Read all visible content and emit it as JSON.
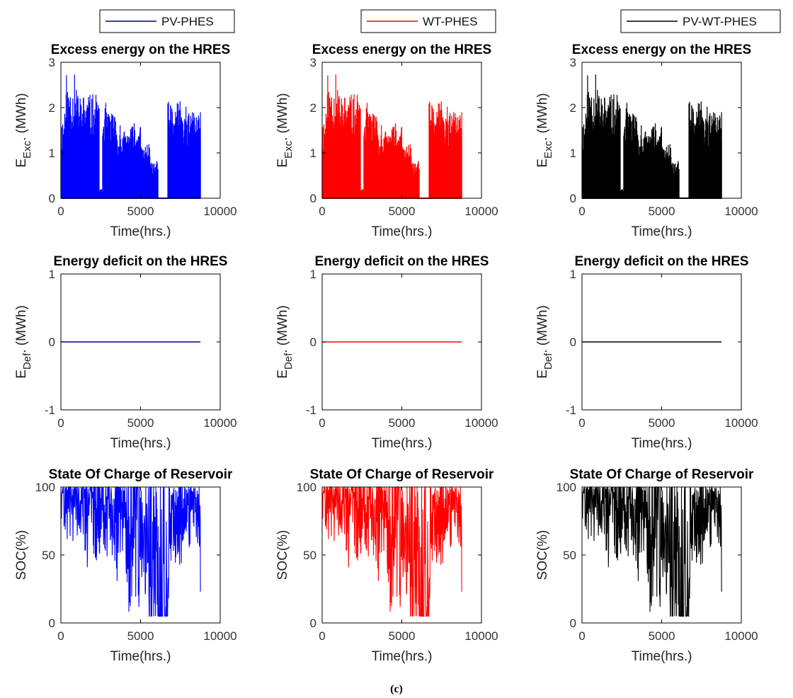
{
  "caption": "(c)",
  "chart_data": [
    {
      "type": "line",
      "title": "Excess energy on the HRES",
      "series_name": "PV-PHES",
      "color": "#0000ff",
      "legend_color": "#000080",
      "ylabel_main": "E",
      "ylabel_sub": "Exc",
      "ylabel_unit": ". (MWh)",
      "xlabel": "Time(hrs.)",
      "xlim": [
        0,
        10000
      ],
      "ylim": [
        0,
        3
      ],
      "xticks": [
        0,
        5000,
        10000
      ],
      "yticks": [
        0,
        1,
        2,
        3
      ],
      "kind": "excess",
      "seed": 11
    },
    {
      "type": "line",
      "title": "Excess energy on the HRES",
      "series_name": "WT-PHES",
      "color": "#ff0000",
      "legend_color": "#ff0000",
      "ylabel_main": "E",
      "ylabel_sub": "Exc",
      "ylabel_unit": ". (MWh)",
      "xlabel": "Time(hrs.)",
      "xlim": [
        0,
        10000
      ],
      "ylim": [
        0,
        3
      ],
      "xticks": [
        0,
        5000,
        10000
      ],
      "yticks": [
        0,
        1,
        2,
        3
      ],
      "kind": "excess",
      "seed": 11
    },
    {
      "type": "line",
      "title": "Excess energy on the HRES",
      "series_name": "PV-WT-PHES",
      "color": "#000000",
      "legend_color": "#000000",
      "ylabel_main": "E",
      "ylabel_sub": "Exc",
      "ylabel_unit": ". (MWh)",
      "xlabel": "Time(hrs.)",
      "xlim": [
        0,
        10000
      ],
      "ylim": [
        0,
        3
      ],
      "xticks": [
        0,
        5000,
        10000
      ],
      "yticks": [
        0,
        1,
        2,
        3
      ],
      "kind": "excess",
      "seed": 11
    },
    {
      "type": "line",
      "title": "Energy deficit on the HRES",
      "color": "#000080",
      "ylabel_main": "E",
      "ylabel_sub": "Def",
      "ylabel_unit": ". (MWh)",
      "xlabel": "Time(hrs.)",
      "xlim": [
        0,
        10000
      ],
      "ylim": [
        -1,
        1
      ],
      "xticks": [
        0,
        5000,
        10000
      ],
      "yticks": [
        -1,
        0,
        1
      ],
      "kind": "flat",
      "x": [
        0,
        8760
      ],
      "y": [
        0,
        0
      ]
    },
    {
      "type": "line",
      "title": "Energy deficit on the HRES",
      "color": "#ff0000",
      "ylabel_main": "E",
      "ylabel_sub": "Def",
      "ylabel_unit": ". (MWh)",
      "xlabel": "Time(hrs.)",
      "xlim": [
        0,
        10000
      ],
      "ylim": [
        -1,
        1
      ],
      "xticks": [
        0,
        5000,
        10000
      ],
      "yticks": [
        -1,
        0,
        1
      ],
      "kind": "flat",
      "x": [
        0,
        8760
      ],
      "y": [
        0,
        0
      ]
    },
    {
      "type": "line",
      "title": "Energy deficit on the HRES",
      "color": "#000000",
      "ylabel_main": "E",
      "ylabel_sub": "Def",
      "ylabel_unit": ". (MWh)",
      "xlabel": "Time(hrs.)",
      "xlim": [
        0,
        10000
      ],
      "ylim": [
        -1,
        1
      ],
      "xticks": [
        0,
        5000,
        10000
      ],
      "yticks": [
        -1,
        0,
        1
      ],
      "kind": "flat",
      "x": [
        0,
        8760
      ],
      "y": [
        0,
        0
      ]
    },
    {
      "type": "line",
      "title": "State Of Charge of Reservoir",
      "color": "#0000ff",
      "ylabel_main": "SOC(%)",
      "ylabel_sub": "",
      "ylabel_unit": "",
      "xlabel": "Time(hrs.)",
      "xlim": [
        0,
        10000
      ],
      "ylim": [
        0,
        100
      ],
      "xticks": [
        0,
        5000,
        10000
      ],
      "yticks": [
        0,
        50,
        100
      ],
      "kind": "soc",
      "seed": 23
    },
    {
      "type": "line",
      "title": "State Of Charge of Reservoir",
      "color": "#ff0000",
      "ylabel_main": "SOC(%)",
      "ylabel_sub": "",
      "ylabel_unit": "",
      "xlabel": "Time(hrs.)",
      "xlim": [
        0,
        10000
      ],
      "ylim": [
        0,
        100
      ],
      "xticks": [
        0,
        5000,
        10000
      ],
      "yticks": [
        0,
        50,
        100
      ],
      "kind": "soc",
      "seed": 23
    },
    {
      "type": "line",
      "title": "State Of Charge of Reservoir",
      "color": "#000000",
      "ylabel_main": "SOC(%)",
      "ylabel_sub": "",
      "ylabel_unit": "",
      "xlabel": "Time(hrs.)",
      "xlim": [
        0,
        10000
      ],
      "ylim": [
        0,
        100
      ],
      "xticks": [
        0,
        5000,
        10000
      ],
      "yticks": [
        0,
        50,
        100
      ],
      "kind": "soc",
      "seed": 23
    }
  ]
}
